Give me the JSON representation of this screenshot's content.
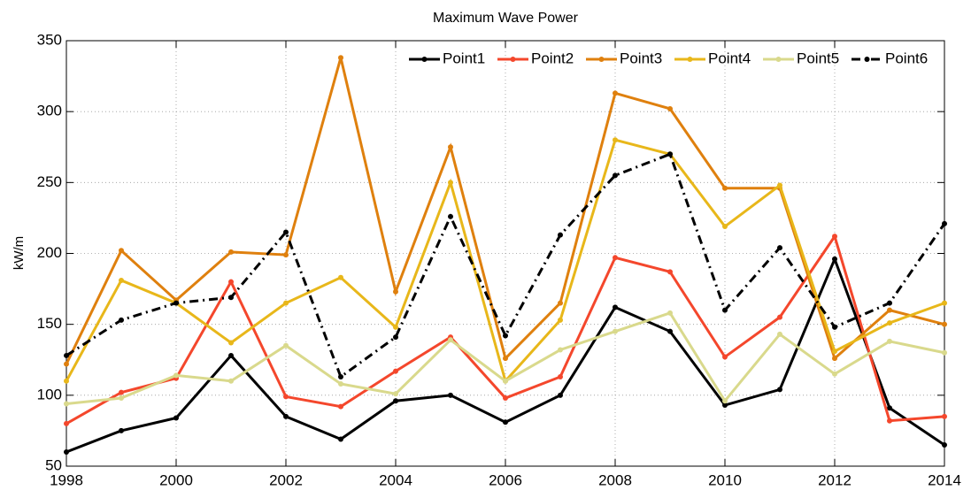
{
  "chart_data": {
    "type": "line",
    "title": "Maximum Wave Power",
    "y_label": "kW/m",
    "x": [
      1998,
      1999,
      2000,
      2001,
      2002,
      2003,
      2004,
      2005,
      2006,
      2007,
      2008,
      2009,
      2010,
      2011,
      2012,
      2013,
      2014
    ],
    "xlim": [
      1998,
      2014
    ],
    "xticks": [
      1998,
      2000,
      2002,
      2004,
      2006,
      2008,
      2010,
      2012,
      2014
    ],
    "ylim": [
      50,
      350
    ],
    "yticks": [
      50,
      100,
      150,
      200,
      250,
      300,
      350
    ],
    "grid": true,
    "legend": "top-right",
    "series": [
      {
        "name": "Point1",
        "color": "#000000",
        "linestyle": "solid",
        "values": [
          60,
          75,
          84,
          128,
          85,
          69,
          96,
          100,
          81,
          100,
          162,
          145,
          93,
          104,
          196,
          91,
          65
        ]
      },
      {
        "name": "Point2",
        "color": "#f4472c",
        "linestyle": "solid",
        "values": [
          80,
          102,
          112,
          180,
          99,
          92,
          117,
          141,
          98,
          113,
          197,
          187,
          127,
          155,
          212,
          82,
          85
        ]
      },
      {
        "name": "Point3",
        "color": "#df800e",
        "linestyle": "solid",
        "values": [
          122,
          202,
          167,
          201,
          199,
          338,
          173,
          275,
          126,
          165,
          313,
          302,
          246,
          246,
          126,
          160,
          150
        ]
      },
      {
        "name": "Point4",
        "color": "#e8b71a",
        "linestyle": "solid",
        "values": [
          110,
          181,
          165,
          137,
          165,
          183,
          148,
          250,
          110,
          153,
          280,
          270,
          219,
          248,
          131,
          151,
          165
        ]
      },
      {
        "name": "Point5",
        "color": "#d9d98c",
        "linestyle": "solid",
        "values": [
          94,
          98,
          114,
          110,
          135,
          108,
          101,
          139,
          110,
          132,
          145,
          158,
          96,
          143,
          115,
          138,
          130
        ]
      },
      {
        "name": "Point6",
        "color": "#000000",
        "linestyle": "dashdot",
        "values": [
          128,
          153,
          165,
          169,
          215,
          113,
          141,
          226,
          142,
          213,
          255,
          270,
          160,
          204,
          148,
          165,
          221
        ]
      }
    ]
  }
}
